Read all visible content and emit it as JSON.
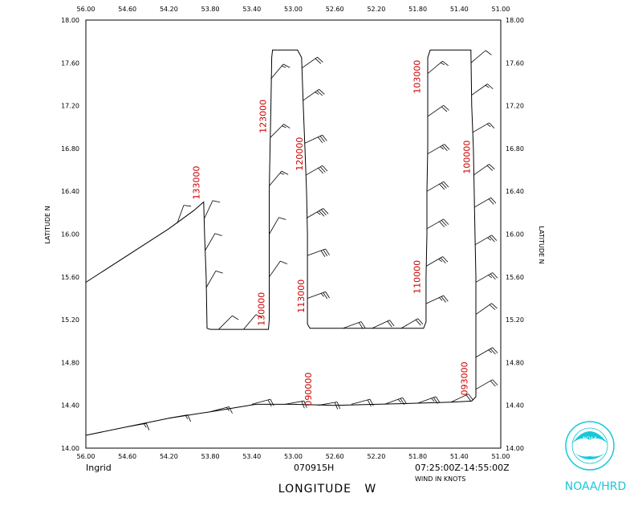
{
  "map": {
    "storm_name": "Ingrid",
    "flight_id": "070915H",
    "time_range": "07:25:00Z-14:55:00Z",
    "wind_units_label": "WIND IN KNOTS",
    "x_title": "LONGITUDE   W",
    "y_title_left": "LATITUDE   N",
    "y_title_right": "LATITUDE   N",
    "logo_text": "NOAA/HRD",
    "logo_inner_text": "NOAA",
    "accent_color": "#19c8d8",
    "track_color": "#000000",
    "label_color": "#cc0000",
    "extent": {
      "lon_w": [
        56.0,
        51.0
      ],
      "lat_n": [
        14.0,
        18.0
      ]
    },
    "x_ticks": [
      "56.00",
      "54.60",
      "54.20",
      "53.80",
      "53.40",
      "53.00",
      "52.60",
      "52.20",
      "51.80",
      "51.40",
      "51.00"
    ],
    "y_ticks_left": [
      "14.00",
      "14.40",
      "14.80",
      "15.20",
      "15.60",
      "16.00",
      "16.40",
      "16.80",
      "17.20",
      "17.60",
      "18.00"
    ],
    "y_ticks_right": [
      "14.00",
      "14.40",
      "14.80",
      "15.20",
      "15.60",
      "16.00",
      "16.40",
      "16.80",
      "17.20",
      "17.60",
      "18.00"
    ]
  },
  "chart_data": {
    "type": "track",
    "title": "Ingrid 070915H",
    "xlabel": "LONGITUDE W",
    "ylabel": "LATITUDE N",
    "xlim": [
      56.0,
      51.0
    ],
    "ylim": [
      14.0,
      18.0
    ],
    "track": [
      {
        "lon": 56.0,
        "lat": 14.12
      },
      {
        "lon": 55.5,
        "lat": 14.2
      },
      {
        "lon": 55.0,
        "lat": 14.28
      },
      {
        "lon": 54.5,
        "lat": 14.34
      },
      {
        "lon": 53.95,
        "lat": 14.41
      },
      {
        "lon": 53.5,
        "lat": 14.41
      },
      {
        "lon": 53.0,
        "lat": 14.4
      },
      {
        "lon": 52.5,
        "lat": 14.41
      },
      {
        "lon": 52.0,
        "lat": 14.42
      },
      {
        "lon": 51.6,
        "lat": 14.43
      },
      {
        "lon": 51.35,
        "lat": 14.44
      },
      {
        "lon": 51.3,
        "lat": 14.48
      },
      {
        "lon": 51.3,
        "lat": 14.8
      },
      {
        "lon": 51.3,
        "lat": 15.2
      },
      {
        "lon": 51.3,
        "lat": 15.6
      },
      {
        "lon": 51.31,
        "lat": 16.0
      },
      {
        "lon": 51.32,
        "lat": 16.4
      },
      {
        "lon": 51.33,
        "lat": 16.8
      },
      {
        "lon": 51.35,
        "lat": 17.2
      },
      {
        "lon": 51.36,
        "lat": 17.72
      },
      {
        "lon": 51.85,
        "lat": 17.72
      },
      {
        "lon": 51.88,
        "lat": 17.65
      },
      {
        "lon": 51.88,
        "lat": 17.2
      },
      {
        "lon": 51.88,
        "lat": 16.8
      },
      {
        "lon": 51.89,
        "lat": 16.4
      },
      {
        "lon": 51.89,
        "lat": 16.0
      },
      {
        "lon": 51.9,
        "lat": 15.6
      },
      {
        "lon": 51.9,
        "lat": 15.18
      },
      {
        "lon": 51.93,
        "lat": 15.12
      },
      {
        "lon": 52.5,
        "lat": 15.12
      },
      {
        "lon": 53.0,
        "lat": 15.12
      },
      {
        "lon": 53.3,
        "lat": 15.12
      },
      {
        "lon": 53.33,
        "lat": 15.16
      },
      {
        "lon": 53.33,
        "lat": 15.6
      },
      {
        "lon": 53.33,
        "lat": 16.0
      },
      {
        "lon": 53.34,
        "lat": 16.4
      },
      {
        "lon": 53.36,
        "lat": 16.8
      },
      {
        "lon": 53.38,
        "lat": 17.2
      },
      {
        "lon": 53.4,
        "lat": 17.65
      },
      {
        "lon": 53.45,
        "lat": 17.72
      },
      {
        "lon": 53.75,
        "lat": 17.72
      },
      {
        "lon": 53.76,
        "lat": 17.65
      },
      {
        "lon": 53.77,
        "lat": 17.2
      },
      {
        "lon": 53.78,
        "lat": 16.8
      },
      {
        "lon": 53.79,
        "lat": 16.4
      },
      {
        "lon": 53.79,
        "lat": 16.0
      },
      {
        "lon": 53.79,
        "lat": 15.6
      },
      {
        "lon": 53.79,
        "lat": 15.2
      },
      {
        "lon": 53.8,
        "lat": 15.11
      },
      {
        "lon": 54.2,
        "lat": 15.11
      },
      {
        "lon": 54.5,
        "lat": 15.11
      },
      {
        "lon": 54.54,
        "lat": 15.12
      },
      {
        "lon": 54.55,
        "lat": 15.6
      },
      {
        "lon": 54.57,
        "lat": 16.0
      },
      {
        "lon": 54.58,
        "lat": 16.3
      },
      {
        "lon": 54.7,
        "lat": 16.22
      },
      {
        "lon": 55.0,
        "lat": 16.05
      },
      {
        "lon": 56.0,
        "lat": 15.55
      }
    ],
    "time_labels": [
      {
        "text": "093000",
        "lon": 51.4,
        "lat": 14.65
      },
      {
        "text": "090000",
        "lon": 53.28,
        "lat": 14.55
      },
      {
        "text": "100000",
        "lon": 51.37,
        "lat": 16.72
      },
      {
        "text": "103000",
        "lon": 51.97,
        "lat": 17.47
      },
      {
        "text": "110000",
        "lon": 51.97,
        "lat": 15.6
      },
      {
        "text": "113000",
        "lon": 53.37,
        "lat": 15.42
      },
      {
        "text": "120000",
        "lon": 53.39,
        "lat": 16.75
      },
      {
        "text": "123000",
        "lon": 53.83,
        "lat": 17.1
      },
      {
        "text": "130000",
        "lon": 53.85,
        "lat": 15.3
      },
      {
        "text": "133000",
        "lon": 54.63,
        "lat": 16.48
      }
    ],
    "wind_barbs": [
      {
        "lon": 51.3,
        "lat": 14.55,
        "dir": 60,
        "kt": 20
      },
      {
        "lon": 51.3,
        "lat": 14.85,
        "dir": 60,
        "kt": 25
      },
      {
        "lon": 51.3,
        "lat": 15.25,
        "dir": 55,
        "kt": 20
      },
      {
        "lon": 51.3,
        "lat": 15.55,
        "dir": 60,
        "kt": 25
      },
      {
        "lon": 51.31,
        "lat": 15.9,
        "dir": 60,
        "kt": 25
      },
      {
        "lon": 51.32,
        "lat": 16.25,
        "dir": 60,
        "kt": 20
      },
      {
        "lon": 51.33,
        "lat": 16.55,
        "dir": 55,
        "kt": 20
      },
      {
        "lon": 51.34,
        "lat": 16.95,
        "dir": 60,
        "kt": 15
      },
      {
        "lon": 51.35,
        "lat": 17.3,
        "dir": 55,
        "kt": 15
      },
      {
        "lon": 51.36,
        "lat": 17.6,
        "dir": 50,
        "kt": 10
      },
      {
        "lon": 51.88,
        "lat": 17.5,
        "dir": 50,
        "kt": 15
      },
      {
        "lon": 51.88,
        "lat": 17.1,
        "dir": 55,
        "kt": 20
      },
      {
        "lon": 51.88,
        "lat": 16.75,
        "dir": 60,
        "kt": 25
      },
      {
        "lon": 51.89,
        "lat": 16.4,
        "dir": 60,
        "kt": 30
      },
      {
        "lon": 51.89,
        "lat": 16.05,
        "dir": 60,
        "kt": 30
      },
      {
        "lon": 51.9,
        "lat": 15.7,
        "dir": 60,
        "kt": 25
      },
      {
        "lon": 51.9,
        "lat": 15.35,
        "dir": 65,
        "kt": 25
      },
      {
        "lon": 52.2,
        "lat": 15.12,
        "dir": 60,
        "kt": 20
      },
      {
        "lon": 52.55,
        "lat": 15.12,
        "dir": 65,
        "kt": 20
      },
      {
        "lon": 52.9,
        "lat": 15.12,
        "dir": 70,
        "kt": 20
      },
      {
        "lon": 53.33,
        "lat": 15.4,
        "dir": 70,
        "kt": 25
      },
      {
        "lon": 53.33,
        "lat": 15.8,
        "dir": 70,
        "kt": 30
      },
      {
        "lon": 53.34,
        "lat": 16.15,
        "dir": 60,
        "kt": 35
      },
      {
        "lon": 53.35,
        "lat": 16.55,
        "dir": 60,
        "kt": 30
      },
      {
        "lon": 53.36,
        "lat": 16.85,
        "dir": 65,
        "kt": 30
      },
      {
        "lon": 53.38,
        "lat": 17.25,
        "dir": 55,
        "kt": 25
      },
      {
        "lon": 53.4,
        "lat": 17.55,
        "dir": 55,
        "kt": 20
      },
      {
        "lon": 53.77,
        "lat": 17.45,
        "dir": 40,
        "kt": 15
      },
      {
        "lon": 53.78,
        "lat": 16.9,
        "dir": 45,
        "kt": 15
      },
      {
        "lon": 53.79,
        "lat": 16.45,
        "dir": 40,
        "kt": 15
      },
      {
        "lon": 53.79,
        "lat": 16.0,
        "dir": 30,
        "kt": 10
      },
      {
        "lon": 53.79,
        "lat": 15.6,
        "dir": 35,
        "kt": 10
      },
      {
        "lon": 54.1,
        "lat": 15.11,
        "dir": 40,
        "kt": 10
      },
      {
        "lon": 54.4,
        "lat": 15.11,
        "dir": 45,
        "kt": 10
      },
      {
        "lon": 54.55,
        "lat": 15.5,
        "dir": 30,
        "kt": 10
      },
      {
        "lon": 54.56,
        "lat": 15.85,
        "dir": 30,
        "kt": 10
      },
      {
        "lon": 54.57,
        "lat": 16.15,
        "dir": 25,
        "kt": 10
      },
      {
        "lon": 54.9,
        "lat": 16.1,
        "dir": 20,
        "kt": 10
      },
      {
        "lon": 55.5,
        "lat": 14.2,
        "dir": 80,
        "kt": 15
      },
      {
        "lon": 55.0,
        "lat": 14.28,
        "dir": 80,
        "kt": 15
      },
      {
        "lon": 54.5,
        "lat": 14.34,
        "dir": 75,
        "kt": 15
      },
      {
        "lon": 54.0,
        "lat": 14.41,
        "dir": 75,
        "kt": 20
      },
      {
        "lon": 53.6,
        "lat": 14.41,
        "dir": 80,
        "kt": 20
      },
      {
        "lon": 53.2,
        "lat": 14.4,
        "dir": 80,
        "kt": 20
      },
      {
        "lon": 52.8,
        "lat": 14.41,
        "dir": 75,
        "kt": 20
      },
      {
        "lon": 52.4,
        "lat": 14.41,
        "dir": 70,
        "kt": 25
      },
      {
        "lon": 52.0,
        "lat": 14.42,
        "dir": 70,
        "kt": 25
      },
      {
        "lon": 51.6,
        "lat": 14.43,
        "dir": 65,
        "kt": 20
      }
    ]
  }
}
